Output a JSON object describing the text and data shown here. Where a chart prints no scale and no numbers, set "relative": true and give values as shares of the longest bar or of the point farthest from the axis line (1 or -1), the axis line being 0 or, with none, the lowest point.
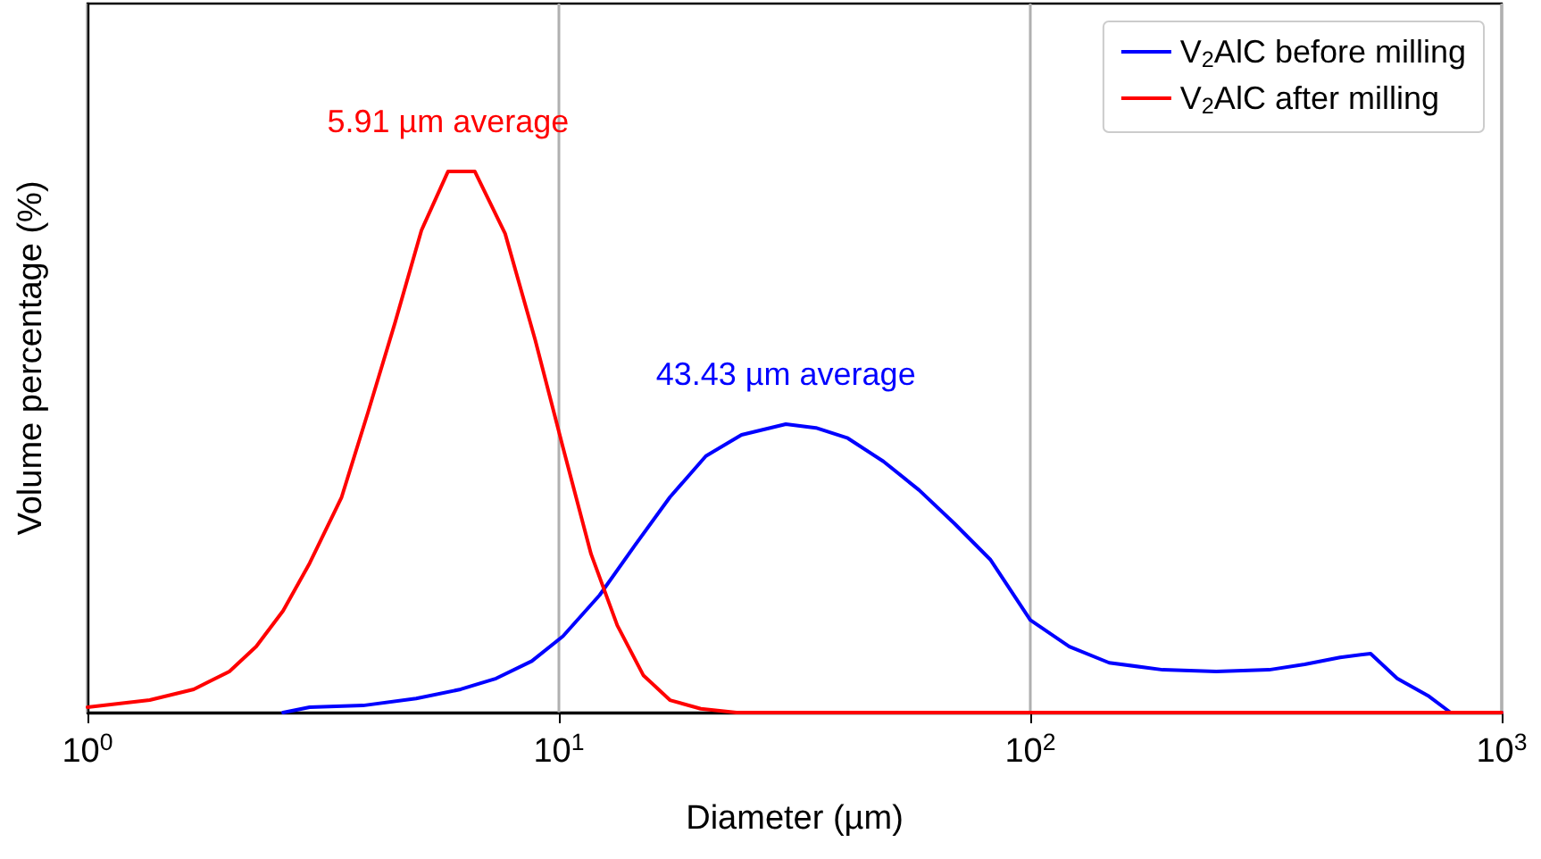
{
  "chart_data": {
    "type": "line",
    "relative": true,
    "log": "x",
    "xlabel": "Diameter (µm)",
    "ylabel": "Volume percentage (%)",
    "xlim": [
      1,
      1000
    ],
    "xticks": [
      {
        "value": 1,
        "label": "10$^{0}$"
      },
      {
        "value": 10,
        "label": "10$^{1}$"
      },
      {
        "value": 100,
        "label": "10$^{2}$"
      },
      {
        "value": 1000,
        "label": "10$^{3}$"
      }
    ],
    "grid": "x",
    "legend": "top right",
    "marker": "none",
    "line_style": "solid",
    "series": [
      {
        "name": "V$_{2}$AlC before milling",
        "color": "#0000ff",
        "x": [
          2.6,
          2.96,
          3.84,
          4.98,
          6.19,
          7.36,
          8.76,
          10.2,
          12.2,
          14.5,
          17.2,
          20.5,
          24.4,
          30.3,
          35.1,
          41,
          48.8,
          58.1,
          69.1,
          82.2,
          100,
          121,
          147,
          191,
          248,
          321,
          382,
          454,
          527,
          600,
          701,
          779,
          1000
        ],
        "values": [
          0,
          0.01,
          0.013,
          0.026,
          0.043,
          0.063,
          0.095,
          0.141,
          0.217,
          0.309,
          0.398,
          0.474,
          0.513,
          0.533,
          0.526,
          0.507,
          0.464,
          0.411,
          0.349,
          0.283,
          0.171,
          0.122,
          0.092,
          0.079,
          0.076,
          0.079,
          0.089,
          0.102,
          0.109,
          0.063,
          0.03,
          0,
          0
        ]
      },
      {
        "name": "V$_{2}$AlC after milling",
        "color": "#ff0000",
        "x": [
          1,
          1.355,
          1.68,
          2,
          2.28,
          2.6,
          2.96,
          3.46,
          3.94,
          4.49,
          5.11,
          5.82,
          6.63,
          7.69,
          8.91,
          10.2,
          11.7,
          13.3,
          15.1,
          17.2,
          20,
          23.8,
          1000
        ],
        "values": [
          0.01,
          0.023,
          0.043,
          0.076,
          0.122,
          0.188,
          0.276,
          0.398,
          0.556,
          0.72,
          0.891,
          1,
          1,
          0.885,
          0.688,
          0.49,
          0.293,
          0.161,
          0.069,
          0.023,
          0.007,
          0,
          0
        ]
      }
    ],
    "annotations": [
      "43.43 µm average",
      "5.91 µm average"
    ]
  }
}
